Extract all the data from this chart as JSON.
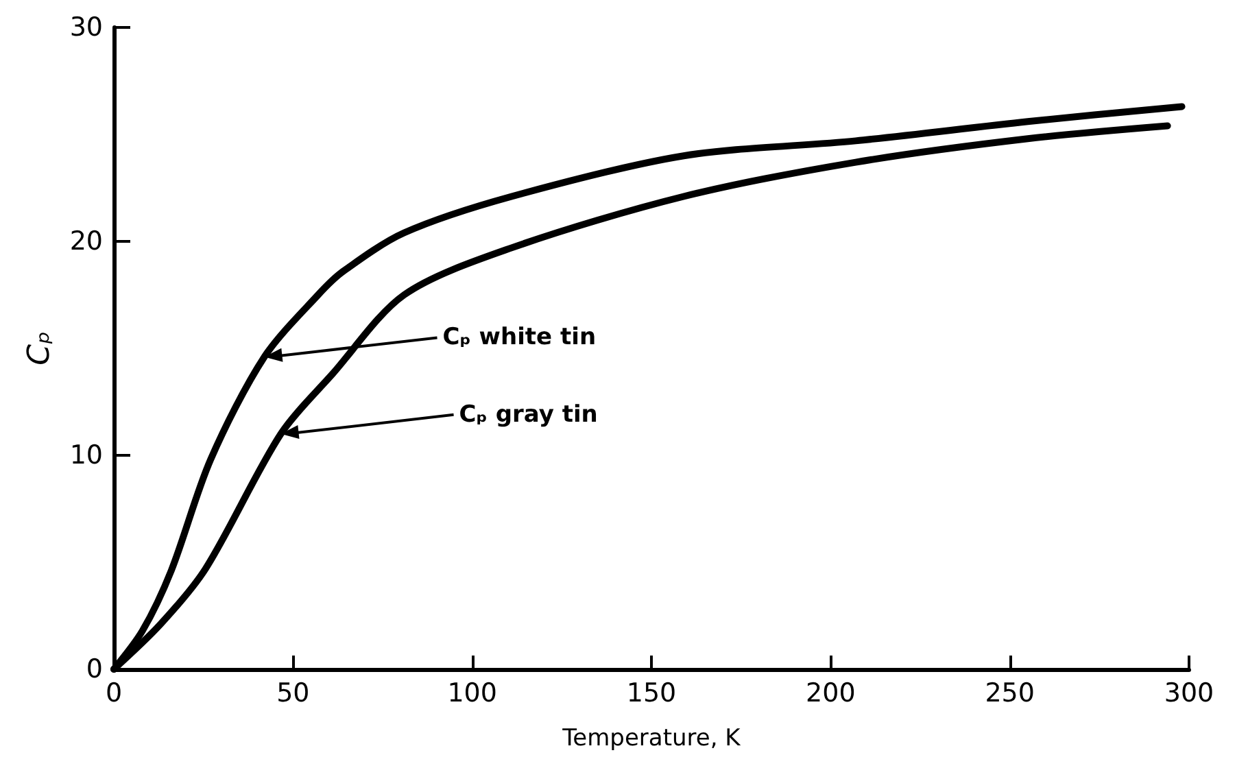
{
  "chart_data": {
    "type": "line",
    "xlabel": "Temperature, K",
    "ylabel": "Cₚ",
    "xlim": [
      0,
      300
    ],
    "xticks": [
      0,
      50,
      100,
      150,
      200,
      250,
      300
    ],
    "ylim": [
      0,
      30
    ],
    "yticks": [
      0,
      10,
      20,
      30
    ],
    "marker": "none",
    "line_style": "solid",
    "series": [
      {
        "color": "#000000",
        "x": [
          0,
          8,
          16,
          27,
          42,
          57,
          64,
          81,
          111,
          159,
          207,
          255,
          298
        ],
        "values": [
          0,
          1.8,
          4.6,
          9.8,
          14.6,
          17.5,
          18.6,
          20.4,
          22.1,
          24.0,
          24.7,
          25.6,
          26.3
        ]
      },
      {
        "color": "#000000",
        "x": [
          0,
          13,
          25.6,
          46.6,
          61,
          81,
          111,
          159,
          207,
          255,
          294
        ],
        "values": [
          0,
          2.1,
          4.7,
          11.0,
          13.8,
          17.5,
          19.7,
          22.1,
          23.7,
          24.8,
          25.4
        ]
      }
    ],
    "annotations": [
      {
        "text": "Cₚ white tin",
        "x": 42,
        "y": 14.6
      },
      {
        "text": "Cₚ gray tin",
        "x": 46.6,
        "y": 11.0
      }
    ]
  }
}
